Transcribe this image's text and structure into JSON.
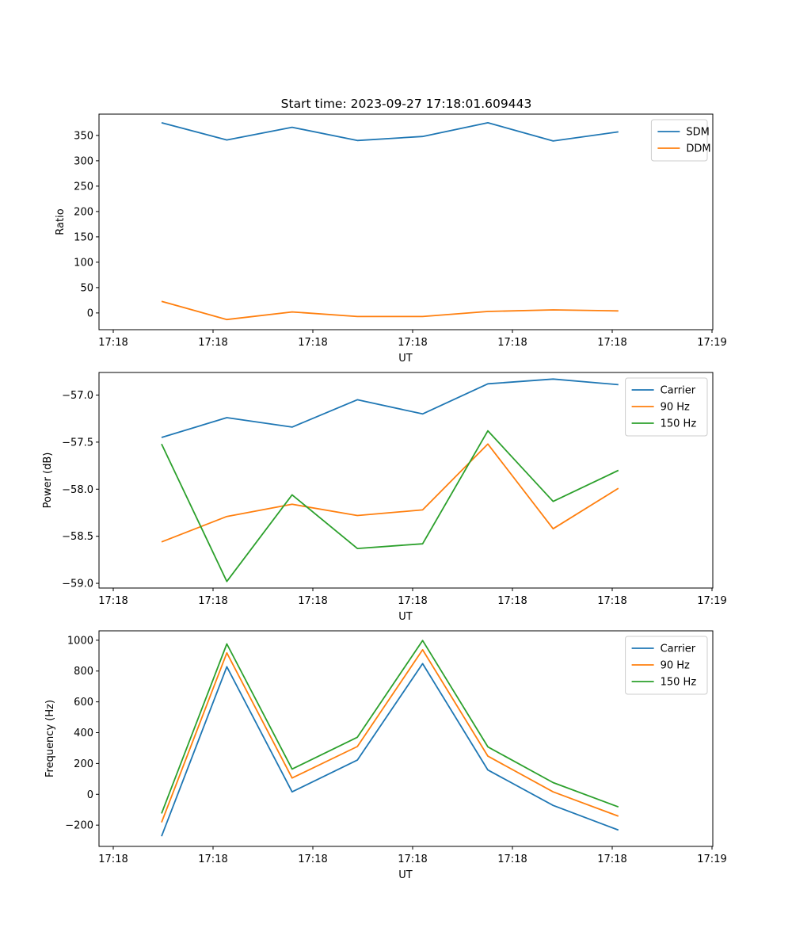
{
  "chart_data": [
    {
      "type": "line",
      "title": "Start time: 2023-09-27 17:18:01.609443",
      "xlabel": "UT",
      "ylabel": "Ratio",
      "x_tick_labels": [
        "17:18",
        "17:18",
        "17:18",
        "17:18",
        "17:18",
        "17:18",
        "17:19"
      ],
      "ylim": [
        -33,
        392
      ],
      "yticks": [
        0,
        50,
        100,
        150,
        200,
        250,
        300,
        350
      ],
      "grid": false,
      "legend_position": "top-right",
      "series": [
        {
          "name": "SDM",
          "color": "#1f77b4",
          "values": [
            375,
            341,
            366,
            340,
            348,
            375,
            339,
            357
          ]
        },
        {
          "name": "DDM",
          "color": "#ff7f0e",
          "values": [
            23,
            -13,
            2,
            -7,
            -7,
            3,
            6,
            4
          ]
        }
      ]
    },
    {
      "type": "line",
      "title": "",
      "xlabel": "UT",
      "ylabel": "Power (dB)",
      "x_tick_labels": [
        "17:18",
        "17:18",
        "17:18",
        "17:18",
        "17:18",
        "17:18",
        "17:19"
      ],
      "ylim": [
        -59.05,
        -56.76
      ],
      "yticks": [
        -59.0,
        -58.5,
        -58.0,
        -57.5,
        -57.0
      ],
      "grid": false,
      "legend_position": "top-right",
      "series": [
        {
          "name": "Carrier",
          "color": "#1f77b4",
          "values": [
            -57.45,
            -57.24,
            -57.34,
            -57.05,
            -57.2,
            -56.88,
            -56.83,
            -56.89
          ]
        },
        {
          "name": "90 Hz",
          "color": "#ff7f0e",
          "values": [
            -58.56,
            -58.29,
            -58.16,
            -58.28,
            -58.22,
            -57.52,
            -58.42,
            -57.99
          ]
        },
        {
          "name": "150 Hz",
          "color": "#2ca02c",
          "values": [
            -57.52,
            -58.98,
            -58.06,
            -58.63,
            -58.58,
            -57.38,
            -58.13,
            -57.8
          ]
        }
      ]
    },
    {
      "type": "line",
      "title": "",
      "xlabel": "UT",
      "ylabel": "Frequency (Hz)",
      "x_tick_labels": [
        "17:18",
        "17:18",
        "17:18",
        "17:18",
        "17:18",
        "17:18",
        "17:19"
      ],
      "ylim": [
        -338,
        1061
      ],
      "yticks": [
        -200,
        0,
        200,
        400,
        600,
        800,
        1000
      ],
      "grid": false,
      "legend_position": "top-right",
      "series": [
        {
          "name": "Carrier",
          "color": "#1f77b4",
          "values": [
            -272,
            828,
            16,
            222,
            848,
            158,
            -72,
            -232
          ]
        },
        {
          "name": "90 Hz",
          "color": "#ff7f0e",
          "values": [
            -182,
            918,
            106,
            310,
            938,
            248,
            16,
            -142
          ]
        },
        {
          "name": "150 Hz",
          "color": "#2ca02c",
          "values": [
            -124,
            976,
            164,
            370,
            998,
            308,
            76,
            -82
          ]
        }
      ]
    }
  ]
}
